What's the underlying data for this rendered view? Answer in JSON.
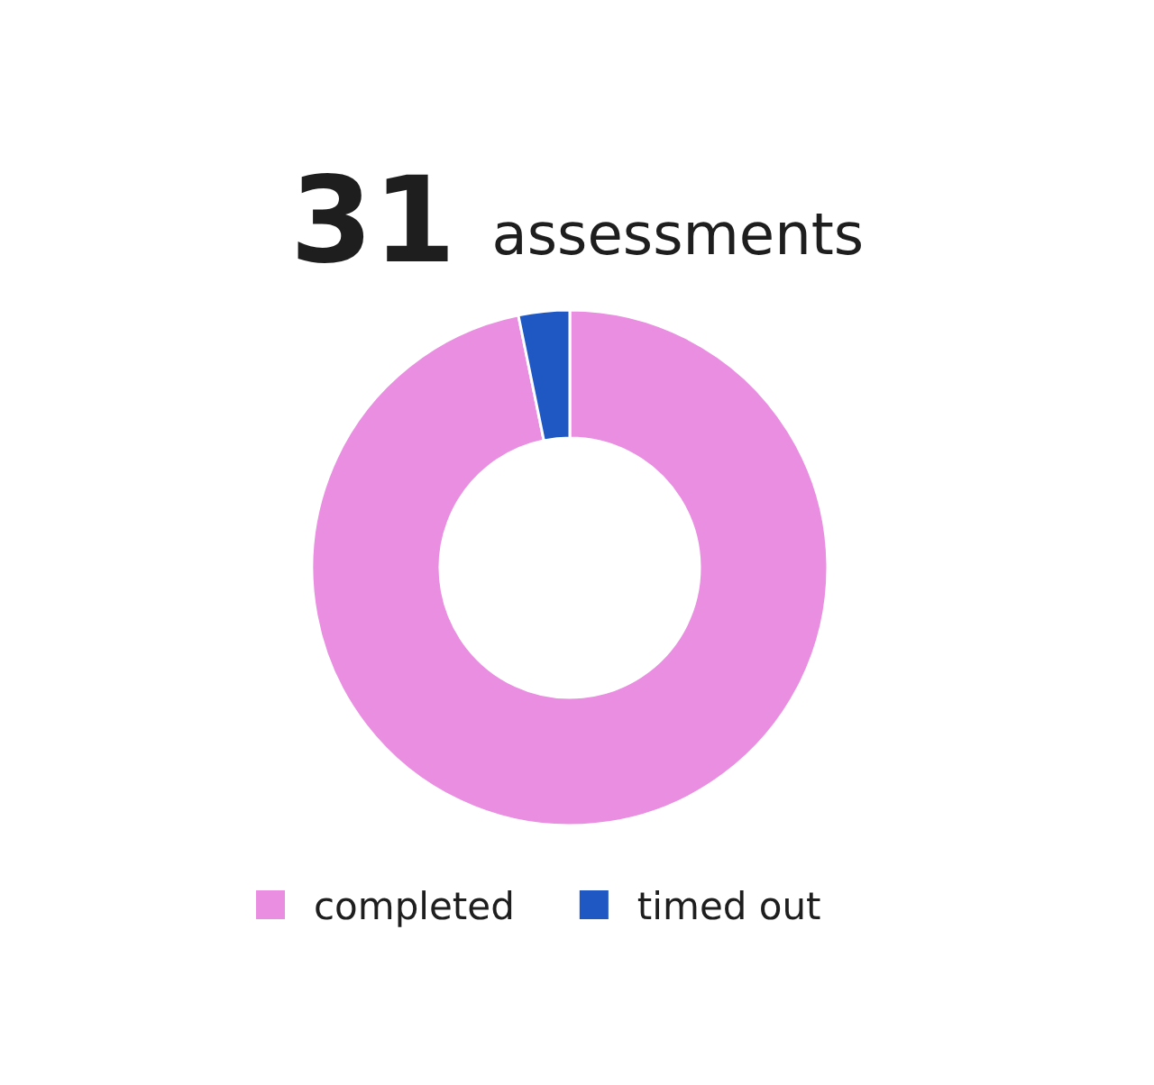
{
  "chart_data": {
    "type": "donut",
    "title": "31",
    "subtitle": "assessments",
    "categories": [
      "completed",
      "timed out"
    ],
    "values": [
      96.8,
      3.2
    ],
    "colors": [
      "#e98ee0",
      "#1f57c3"
    ],
    "legend": "bottom"
  }
}
